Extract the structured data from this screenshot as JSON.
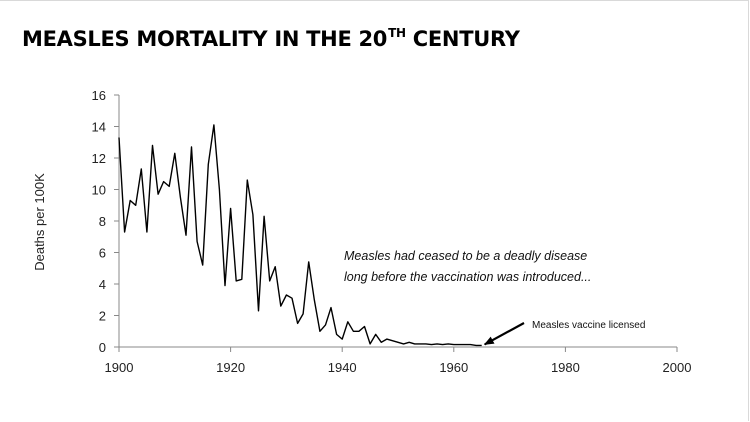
{
  "title": {
    "main": "MEASLES MORTALITY IN THE 20",
    "superscript": "TH",
    "tail": " CENTURY"
  },
  "chart_data": {
    "type": "line",
    "title": "MEASLES MORTALITY IN THE 20TH CENTURY",
    "xlabel": "",
    "ylabel": "Deaths per 100K",
    "xlim": [
      1900,
      2000
    ],
    "ylim": [
      0,
      16
    ],
    "xticks": [
      1900,
      1920,
      1940,
      1960,
      1980,
      2000
    ],
    "yticks": [
      0,
      2,
      4,
      6,
      8,
      10,
      12,
      14,
      16
    ],
    "grid": false,
    "line_color": "#000000",
    "series": [
      {
        "x": [
          1900,
          1901,
          1902,
          1903,
          1904,
          1905,
          1906,
          1907,
          1908,
          1909,
          1910,
          1911,
          1912,
          1913,
          1914,
          1915,
          1916,
          1917,
          1918,
          1919,
          1920,
          1921,
          1922,
          1923,
          1924,
          1925,
          1926,
          1927,
          1928,
          1929,
          1930,
          1931,
          1932,
          1933,
          1934,
          1935,
          1936,
          1937,
          1938,
          1939,
          1940,
          1941,
          1942,
          1943,
          1944,
          1945,
          1946,
          1947,
          1948,
          1949,
          1950,
          1951,
          1952,
          1953,
          1954,
          1955,
          1956,
          1957,
          1958,
          1959,
          1960,
          1961,
          1962,
          1963,
          1964,
          1965
        ],
        "y": [
          13.3,
          7.3,
          9.3,
          9.0,
          11.3,
          7.3,
          12.8,
          9.7,
          10.5,
          10.2,
          12.3,
          9.5,
          7.1,
          12.7,
          6.7,
          5.2,
          11.6,
          14.1,
          10.0,
          3.9,
          8.8,
          4.2,
          4.3,
          10.6,
          8.4,
          2.3,
          8.3,
          4.2,
          5.1,
          2.6,
          3.3,
          3.1,
          1.5,
          2.1,
          5.4,
          3.0,
          1.0,
          1.4,
          2.5,
          0.8,
          0.5,
          1.6,
          1.0,
          1.0,
          1.3,
          0.2,
          0.8,
          0.3,
          0.5,
          0.4,
          0.3,
          0.2,
          0.3,
          0.2,
          0.2,
          0.2,
          0.15,
          0.2,
          0.15,
          0.2,
          0.15,
          0.15,
          0.15,
          0.15,
          0.1,
          0.1
        ]
      }
    ],
    "annotations": [
      {
        "text_line1": "Measles had ceased to be a deadly disease",
        "text_line2": "long before the vaccination was introduced..."
      },
      {
        "text": "Measles vaccine licensed",
        "arrow_to_year": 1965
      }
    ]
  }
}
